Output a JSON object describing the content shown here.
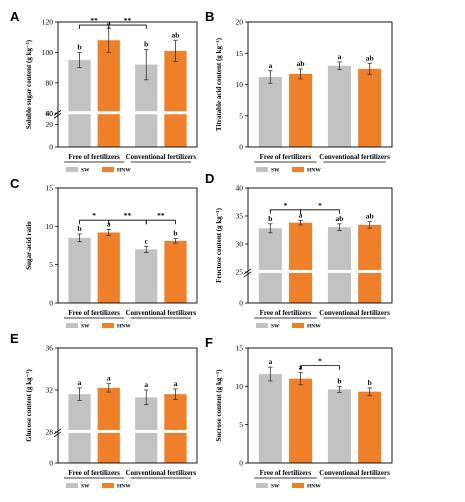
{
  "colors": {
    "SW": "#c2c2c2",
    "HNW": "#f07f2a"
  },
  "legend": [
    "SW",
    "HNW"
  ],
  "groups": [
    "Free of fertilizers",
    "Conventional fertilizers"
  ],
  "chart_data": [
    {
      "panel": "A",
      "type": "bar",
      "ylabel": "Soluble sugar content (g kg⁻¹)",
      "ylim": [
        0,
        120
      ],
      "yticks": [
        0,
        20,
        40,
        60,
        80,
        100,
        120
      ],
      "break": [
        30,
        60
      ],
      "series": [
        {
          "name": "SW",
          "values": [
            95,
            92
          ],
          "errors": [
            5,
            10
          ],
          "letters": [
            "b",
            "b"
          ]
        },
        {
          "name": "HNW",
          "values": [
            108,
            101
          ],
          "errors": [
            8,
            7
          ],
          "letters": [
            "a",
            "ab"
          ]
        }
      ],
      "comparisons": [
        {
          "from": 0,
          "to": 1,
          "label": "**",
          "y": 118
        },
        {
          "from": 1,
          "to": 2,
          "label": "**",
          "y": 118
        }
      ]
    },
    {
      "panel": "B",
      "type": "bar",
      "ylabel": "Titratable acid content (g kg⁻¹)",
      "ylim": [
        0,
        20
      ],
      "yticks": [
        0,
        5,
        10,
        15,
        20
      ],
      "series": [
        {
          "name": "SW",
          "values": [
            11.2,
            13.0
          ],
          "errors": [
            1.0,
            0.6
          ],
          "letters": [
            "a",
            "a"
          ]
        },
        {
          "name": "HNW",
          "values": [
            11.7,
            12.5
          ],
          "errors": [
            0.8,
            0.9
          ],
          "letters": [
            "ab",
            "ab"
          ]
        }
      ],
      "comparisons": []
    },
    {
      "panel": "C",
      "type": "bar",
      "ylabel": "Sugar-acid ratio",
      "ylim": [
        0,
        15
      ],
      "yticks": [
        0,
        5,
        10,
        15
      ],
      "series": [
        {
          "name": "SW",
          "values": [
            8.5,
            7.0
          ],
          "errors": [
            0.5,
            0.4
          ],
          "letters": [
            "b",
            "c"
          ]
        },
        {
          "name": "HNW",
          "values": [
            9.2,
            8.1
          ],
          "errors": [
            0.4,
            0.3
          ],
          "letters": [
            "a",
            "b"
          ]
        }
      ],
      "comparisons": [
        {
          "from": 0,
          "to": 1,
          "label": "*",
          "y": 10.8
        },
        {
          "from": 1,
          "to": 2,
          "label": "**",
          "y": 10.8
        },
        {
          "from": 2,
          "to": 3,
          "label": "**",
          "y": 10.8
        }
      ]
    },
    {
      "panel": "D",
      "type": "bar",
      "ylabel": "Fructose content (g kg⁻¹)",
      "ylim": [
        0,
        40
      ],
      "yticks": [
        0,
        25,
        30,
        35,
        40
      ],
      "break": [
        10,
        25
      ],
      "series": [
        {
          "name": "SW",
          "values": [
            32.8,
            33.0
          ],
          "errors": [
            0.8,
            0.6
          ],
          "letters": [
            "b",
            "ab"
          ]
        },
        {
          "name": "HNW",
          "values": [
            33.8,
            33.4
          ],
          "errors": [
            0.4,
            0.6
          ],
          "letters": [
            "a",
            "ab"
          ]
        }
      ],
      "comparisons": [
        {
          "from": 0,
          "to": 1,
          "label": "*",
          "y": 36.1
        },
        {
          "from": 1,
          "to": 2,
          "label": "*",
          "y": 36.1
        }
      ]
    },
    {
      "panel": "E",
      "type": "bar",
      "ylabel": "Glucose content (g kg⁻¹)",
      "ylim": [
        0,
        36
      ],
      "yticks": [
        0,
        28,
        32,
        36
      ],
      "break": [
        10,
        28
      ],
      "series": [
        {
          "name": "SW",
          "values": [
            31.6,
            31.3
          ],
          "errors": [
            0.6,
            0.7
          ],
          "letters": [
            "a",
            "a"
          ]
        },
        {
          "name": "HNW",
          "values": [
            32.2,
            31.6
          ],
          "errors": [
            0.4,
            0.5
          ],
          "letters": [
            "a",
            "a"
          ]
        }
      ],
      "comparisons": []
    },
    {
      "panel": "F",
      "type": "bar",
      "ylabel": "Sucrose content (g kg⁻¹)",
      "ylim": [
        0,
        15
      ],
      "yticks": [
        0,
        5,
        10,
        15
      ],
      "series": [
        {
          "name": "SW",
          "values": [
            11.6,
            9.6
          ],
          "errors": [
            0.9,
            0.4
          ],
          "letters": [
            "a",
            "b"
          ]
        },
        {
          "name": "HNW",
          "values": [
            11.0,
            9.3
          ],
          "errors": [
            0.8,
            0.5
          ],
          "letters": [
            "a",
            "b"
          ]
        }
      ],
      "comparisons": [
        {
          "from": 1,
          "to": 2,
          "label": "*",
          "y": 12.7
        }
      ]
    }
  ]
}
